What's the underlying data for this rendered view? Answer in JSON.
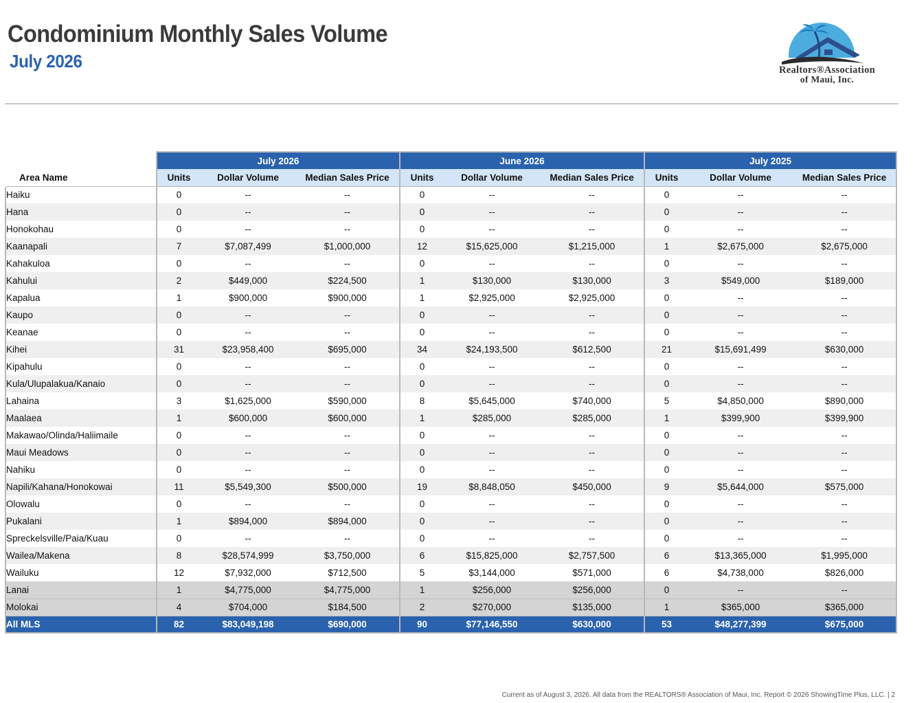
{
  "header": {
    "title": "Condominium Monthly Sales Volume",
    "subtitle": "July 2026"
  },
  "logo": {
    "line1": "Realtors®Association",
    "line2": "of Maui, Inc.",
    "icon": "palm-tree-house-logo-icon",
    "colors": {
      "sky": "#38a3d9",
      "roof": "#2d4f8e",
      "swoosh": "#2b2b2b"
    }
  },
  "table": {
    "group_headers": [
      "July 2026",
      "June 2026",
      "July 2025"
    ],
    "area_header": "Area Name",
    "column_headers": [
      "Units",
      "Dollar Volume",
      "Median Sales Price"
    ],
    "rows": [
      {
        "area": "Haiku",
        "values": [
          "0",
          "--",
          "--",
          "0",
          "--",
          "--",
          "0",
          "--",
          "--"
        ]
      },
      {
        "area": "Hana",
        "values": [
          "0",
          "--",
          "--",
          "0",
          "--",
          "--",
          "0",
          "--",
          "--"
        ]
      },
      {
        "area": "Honokohau",
        "values": [
          "0",
          "--",
          "--",
          "0",
          "--",
          "--",
          "0",
          "--",
          "--"
        ]
      },
      {
        "area": "Kaanapali",
        "values": [
          "7",
          "$7,087,499",
          "$1,000,000",
          "12",
          "$15,625,000",
          "$1,215,000",
          "1",
          "$2,675,000",
          "$2,675,000"
        ]
      },
      {
        "area": "Kahakuloa",
        "values": [
          "0",
          "--",
          "--",
          "0",
          "--",
          "--",
          "0",
          "--",
          "--"
        ]
      },
      {
        "area": "Kahului",
        "values": [
          "2",
          "$449,000",
          "$224,500",
          "1",
          "$130,000",
          "$130,000",
          "3",
          "$549,000",
          "$189,000"
        ]
      },
      {
        "area": "Kapalua",
        "values": [
          "1",
          "$900,000",
          "$900,000",
          "1",
          "$2,925,000",
          "$2,925,000",
          "0",
          "--",
          "--"
        ]
      },
      {
        "area": "Kaupo",
        "values": [
          "0",
          "--",
          "--",
          "0",
          "--",
          "--",
          "0",
          "--",
          "--"
        ]
      },
      {
        "area": "Keanae",
        "values": [
          "0",
          "--",
          "--",
          "0",
          "--",
          "--",
          "0",
          "--",
          "--"
        ]
      },
      {
        "area": "Kihei",
        "values": [
          "31",
          "$23,958,400",
          "$695,000",
          "34",
          "$24,193,500",
          "$612,500",
          "21",
          "$15,691,499",
          "$630,000"
        ]
      },
      {
        "area": "Kipahulu",
        "values": [
          "0",
          "--",
          "--",
          "0",
          "--",
          "--",
          "0",
          "--",
          "--"
        ]
      },
      {
        "area": "Kula/Ulupalakua/Kanaio",
        "values": [
          "0",
          "--",
          "--",
          "0",
          "--",
          "--",
          "0",
          "--",
          "--"
        ]
      },
      {
        "area": "Lahaina",
        "values": [
          "3",
          "$1,625,000",
          "$590,000",
          "8",
          "$5,645,000",
          "$740,000",
          "5",
          "$4,850,000",
          "$890,000"
        ]
      },
      {
        "area": "Maalaea",
        "values": [
          "1",
          "$600,000",
          "$600,000",
          "1",
          "$285,000",
          "$285,000",
          "1",
          "$399,900",
          "$399,900"
        ]
      },
      {
        "area": "Makawao/Olinda/Haliimaile",
        "values": [
          "0",
          "--",
          "--",
          "0",
          "--",
          "--",
          "0",
          "--",
          "--"
        ]
      },
      {
        "area": "Maui Meadows",
        "values": [
          "0",
          "--",
          "--",
          "0",
          "--",
          "--",
          "0",
          "--",
          "--"
        ]
      },
      {
        "area": "Nahiku",
        "values": [
          "0",
          "--",
          "--",
          "0",
          "--",
          "--",
          "0",
          "--",
          "--"
        ]
      },
      {
        "area": "Napili/Kahana/Honokowai",
        "values": [
          "11",
          "$5,549,300",
          "$500,000",
          "19",
          "$8,848,050",
          "$450,000",
          "9",
          "$5,644,000",
          "$575,000"
        ]
      },
      {
        "area": "Olowalu",
        "values": [
          "0",
          "--",
          "--",
          "0",
          "--",
          "--",
          "0",
          "--",
          "--"
        ]
      },
      {
        "area": "Pukalani",
        "values": [
          "1",
          "$894,000",
          "$894,000",
          "0",
          "--",
          "--",
          "0",
          "--",
          "--"
        ]
      },
      {
        "area": "Spreckelsville/Paia/Kuau",
        "values": [
          "0",
          "--",
          "--",
          "0",
          "--",
          "--",
          "0",
          "--",
          "--"
        ]
      },
      {
        "area": "Wailea/Makena",
        "values": [
          "8",
          "$28,574,999",
          "$3,750,000",
          "6",
          "$15,825,000",
          "$2,757,500",
          "6",
          "$13,365,000",
          "$1,995,000"
        ]
      },
      {
        "area": "Wailuku",
        "values": [
          "12",
          "$7,932,000",
          "$712,500",
          "5",
          "$3,144,000",
          "$571,000",
          "6",
          "$4,738,000",
          "$826,000"
        ]
      },
      {
        "area": "Lanai",
        "island": true,
        "values": [
          "1",
          "$4,775,000",
          "$4,775,000",
          "1",
          "$256,000",
          "$256,000",
          "0",
          "--",
          "--"
        ]
      },
      {
        "area": "Molokai",
        "island": true,
        "values": [
          "4",
          "$704,000",
          "$184,500",
          "2",
          "$270,000",
          "$135,000",
          "1",
          "$365,000",
          "$365,000"
        ]
      }
    ],
    "total": {
      "area": "All MLS",
      "values": [
        "82",
        "$83,049,198",
        "$690,000",
        "90",
        "$77,146,550",
        "$630,000",
        "53",
        "$48,277,399",
        "$675,000"
      ]
    }
  },
  "colors": {
    "header_blue": "#2a62ad",
    "subheader_blue": "#d3e5f6",
    "stripe": "#efefef",
    "island_gray": "#d4d4d4"
  },
  "footer": {
    "text": "Current as of August 3, 2026. All data from the REALTORS® Association of Maui, Inc. Report © 2026 ShowingTime Plus, LLC.  |  2"
  }
}
